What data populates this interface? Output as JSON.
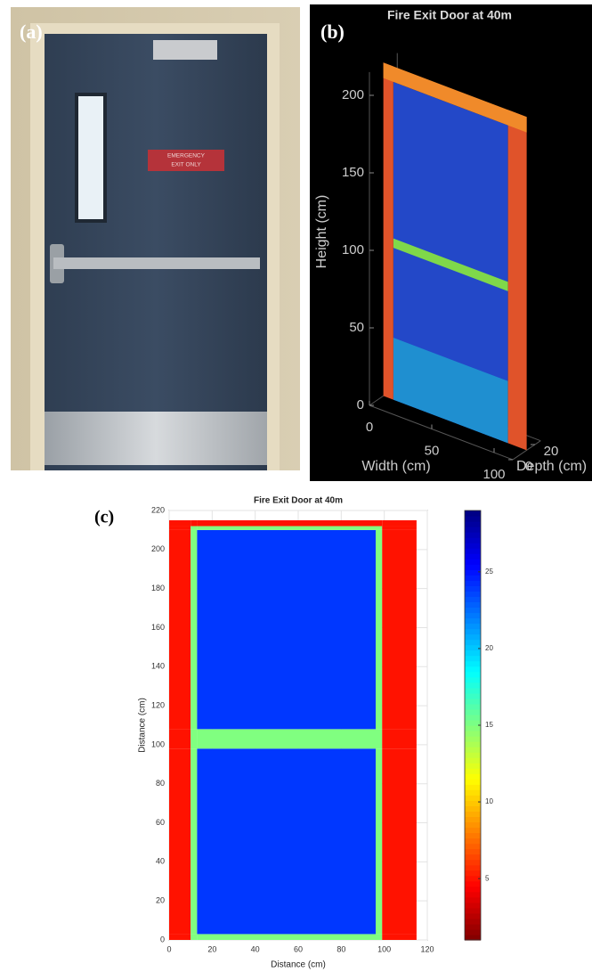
{
  "photo": {
    "label": "(a)",
    "sign": [
      "EMERGENCY",
      "EXIT ONLY"
    ]
  },
  "chart_data": [
    {
      "type": "scatter3d",
      "panel_label": "(b)",
      "title": "Fire Exit Door at 40m",
      "xlabel": "Width (cm)",
      "ylabel": "Height (cm)",
      "zlabel": "Depth (cm)",
      "xlim": [
        0,
        115
      ],
      "ylim": [
        0,
        215
      ],
      "zlim": [
        0,
        25
      ],
      "xticks": [
        0,
        50,
        100
      ],
      "yticks": [
        0,
        50,
        100,
        150,
        200
      ],
      "zticks": [
        0,
        20
      ]
    },
    {
      "type": "heatmap",
      "panel_label": "(c)",
      "title": "Fire Exit Door at 40m",
      "xlabel": "Distance (cm)",
      "ylabel": "Distance (cm)",
      "x_edges": [
        0,
        10,
        13,
        96,
        99,
        115
      ],
      "y_edges": [
        0,
        3,
        98,
        108,
        210,
        212,
        215
      ],
      "z": [
        [
          5,
          15,
          15,
          15,
          5
        ],
        [
          5,
          15,
          24,
          15,
          5
        ],
        [
          5,
          15,
          15,
          15,
          5
        ],
        [
          5,
          15,
          24,
          15,
          5
        ],
        [
          5,
          15,
          15,
          15,
          5
        ],
        [
          5,
          5,
          5,
          5,
          5
        ]
      ],
      "xlim": [
        0,
        120
      ],
      "ylim": [
        0,
        220
      ],
      "xticks": [
        0,
        20,
        40,
        60,
        80,
        100,
        120
      ],
      "yticks": [
        0,
        20,
        40,
        60,
        80,
        100,
        120,
        140,
        160,
        180,
        200,
        220
      ],
      "clim": [
        1,
        29
      ],
      "cticks": [
        5,
        10,
        15,
        20,
        25
      ],
      "colormap": "jet_r",
      "grid": true
    }
  ]
}
